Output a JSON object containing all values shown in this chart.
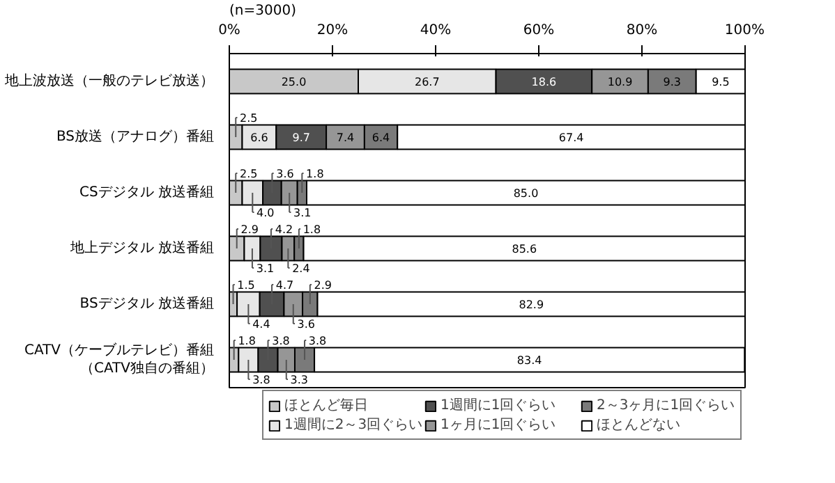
{
  "chart_data": {
    "type": "bar",
    "orientation": "horizontal",
    "stacked": true,
    "annotations": [
      "(n=3000)"
    ],
    "categories": [
      "地上波放送（一般のテレビ放送）",
      "BS放送（アナログ）番組",
      "CSデジタル 放送番組",
      "地上デジタル 放送番組",
      "BSデジタル 放送番組",
      "CATV（ケーブルテレビ）番組（CATV独自の番組）"
    ],
    "series": [
      {
        "name": "ほとんど毎日",
        "color": "#c8c8c8",
        "values": [
          25.0,
          2.5,
          2.5,
          2.9,
          1.5,
          1.8
        ],
        "value_labels": [
          "25.0",
          "2.5",
          "2.5",
          "2.9",
          "1.5",
          "1.8"
        ]
      },
      {
        "name": "1週間に2～3回ぐらい",
        "color": "#e6e6e6",
        "values": [
          26.7,
          6.6,
          4.0,
          3.1,
          4.4,
          3.8
        ],
        "value_labels": [
          "26.7",
          "6.6",
          "4.0",
          "3.1",
          "4.4",
          "3.8"
        ]
      },
      {
        "name": "1週間に1回ぐらい",
        "color": "#505050",
        "values": [
          18.6,
          9.7,
          3.6,
          4.2,
          4.7,
          3.8
        ],
        "value_labels": [
          "18.6",
          "9.7",
          "3.6",
          "4.2",
          "4.7",
          "3.8"
        ]
      },
      {
        "name": "1ヶ月に1回ぐらい",
        "color": "#969696",
        "values": [
          10.9,
          7.4,
          3.1,
          2.4,
          3.6,
          3.3
        ],
        "value_labels": [
          "10.9",
          "7.4",
          "3.1",
          "2.4",
          "3.6",
          "3.3"
        ]
      },
      {
        "name": "2～3ヶ月に1回ぐらい",
        "color": "#7a7a7a",
        "values": [
          9.3,
          6.4,
          1.8,
          1.8,
          2.9,
          3.8
        ],
        "value_labels": [
          "9.3",
          "6.4",
          "1.8",
          "1.8",
          "2.9",
          "3.8"
        ]
      },
      {
        "name": "ほとんどない",
        "color": "#ffffff",
        "values": [
          9.5,
          67.4,
          85.0,
          85.6,
          82.9,
          83.4
        ],
        "value_labels": [
          "9.5",
          "67.4",
          "85.0",
          "85.6",
          "82.9",
          "83.4"
        ]
      }
    ],
    "xlim": [
      0,
      100
    ],
    "xticks": [
      {
        "value": 0,
        "label": "0%"
      },
      {
        "value": 20,
        "label": "20%"
      },
      {
        "value": 40,
        "label": "40%"
      },
      {
        "value": 60,
        "label": "60%"
      },
      {
        "value": 80,
        "label": "80%"
      },
      {
        "value": 100,
        "label": "100%"
      }
    ],
    "legend": "bottom"
  }
}
